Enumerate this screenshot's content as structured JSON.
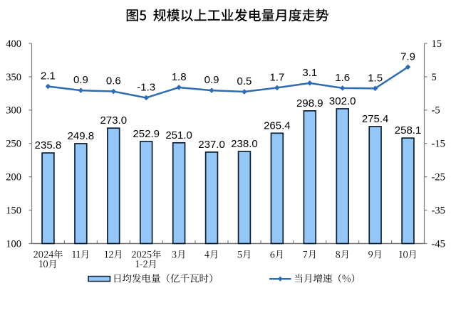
{
  "window": {
    "background": "#ffffff"
  },
  "chart_data": {
    "type": "bar+line",
    "title": "图5  规模以上工业发电量月度走势",
    "categories": [
      [
        "2024年",
        "10月"
      ],
      [
        "11月"
      ],
      [
        "12月"
      ],
      [
        "2025年",
        "1-2月"
      ],
      [
        "3月"
      ],
      [
        "4月"
      ],
      [
        "5月"
      ],
      [
        "6月"
      ],
      [
        "7月"
      ],
      [
        "8月"
      ],
      [
        "9月"
      ],
      [
        "10月"
      ]
    ],
    "series": [
      {
        "name": "日均发电量（亿千瓦时）",
        "type": "bar",
        "axis": "left",
        "values": [
          235.8,
          249.8,
          273.0,
          252.9,
          251.0,
          237.0,
          238.0,
          265.4,
          298.9,
          302.0,
          275.4,
          258.1
        ],
        "labels": [
          "235.8",
          "249.8",
          "273.0",
          "252.9",
          "251.0",
          "237.0",
          "238.0",
          "265.4",
          "298.9",
          "302.0",
          "275.4",
          "258.1"
        ]
      },
      {
        "name": "当月增速（%）",
        "type": "line",
        "axis": "right",
        "values": [
          2.1,
          0.9,
          0.6,
          -1.3,
          1.8,
          0.9,
          0.5,
          1.7,
          3.1,
          1.6,
          1.5,
          7.9
        ],
        "labels": [
          "2.1",
          "0.9",
          "0.6",
          "-1.3",
          "1.8",
          "0.9",
          "0.5",
          "1.7",
          "3.1",
          "1.6",
          "1.5",
          "7.9"
        ]
      }
    ],
    "left_axis": {
      "min": 100,
      "max": 400,
      "step": 50,
      "ticks": [
        "400",
        "350",
        "300",
        "250",
        "200",
        "150",
        "100"
      ]
    },
    "right_axis": {
      "min": -45,
      "max": 15,
      "step": 10,
      "ticks": [
        "15",
        "5",
        "-5",
        "-15",
        "-25",
        "-35",
        "-45"
      ]
    },
    "legend": [
      {
        "label": "日均发电量（亿千瓦时）",
        "marker": "bar-swatch"
      },
      {
        "label": "当月增速（%）",
        "marker": "line-diamond"
      }
    ],
    "grid": false,
    "legend_position": "bottom",
    "colors": {
      "bar_fill": "#95C7F6",
      "bar_border": "#0D2033",
      "line": "#2E6CB5",
      "axis": "#7F7F7F",
      "text": "#000000"
    }
  }
}
